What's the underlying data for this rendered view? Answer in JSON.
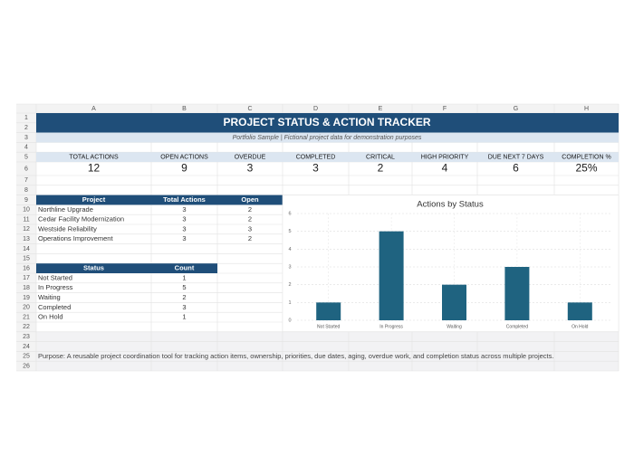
{
  "columns": [
    "A",
    "B",
    "C",
    "D",
    "E",
    "F",
    "G",
    "H"
  ],
  "rows": [
    1,
    2,
    3,
    4,
    5,
    6,
    7,
    8,
    9,
    10,
    11,
    12,
    13,
    14,
    15,
    16,
    17,
    18,
    19,
    20,
    21,
    22,
    23,
    24,
    25,
    26
  ],
  "title": "PROJECT STATUS & ACTION TRACKER",
  "subtitle": "Portfolio Sample | Fictional project data for demonstration purposes",
  "kpis": [
    {
      "label": "TOTAL ACTIONS",
      "value": 12
    },
    {
      "label": "OPEN ACTIONS",
      "value": 9
    },
    {
      "label": "OVERDUE",
      "value": 3
    },
    {
      "label": "COMPLETED",
      "value": 3
    },
    {
      "label": "CRITICAL",
      "value": 2
    },
    {
      "label": "HIGH PRIORITY",
      "value": 4
    },
    {
      "label": "DUE NEXT 7 DAYS",
      "value": 6
    },
    {
      "label": "COMPLETION %",
      "value": "25%"
    }
  ],
  "projects": {
    "header": [
      "Project",
      "Total Actions",
      "Open"
    ],
    "rows": [
      [
        "Northline Upgrade",
        3,
        2
      ],
      [
        "Cedar Facility Modernization",
        3,
        2
      ],
      [
        "Westside Reliability",
        3,
        3
      ],
      [
        "Operations Improvement",
        3,
        2
      ]
    ]
  },
  "statuses": {
    "header": [
      "Status",
      "Count"
    ],
    "rows": [
      [
        "Not Started",
        1
      ],
      [
        "In Progress",
        5
      ],
      [
        "Waiting",
        2
      ],
      [
        "Completed",
        3
      ],
      [
        "On Hold",
        1
      ]
    ]
  },
  "chart": {
    "type": "bar",
    "title": "Actions by Status",
    "categories": [
      "Not Started",
      "In Progress",
      "Waiting",
      "Completed",
      "On Hold"
    ],
    "values": [
      1,
      5,
      2,
      3,
      1
    ],
    "color": "#1f6380",
    "ylim": [
      0,
      6
    ],
    "yticks": [
      0,
      1,
      2,
      3,
      4,
      5,
      6
    ],
    "grid": true
  },
  "purpose": "Purpose: A reusable project coordination tool for tracking action items, ownership, priorities, due dates, aging, overdue work, and completion status across multiple projects."
}
